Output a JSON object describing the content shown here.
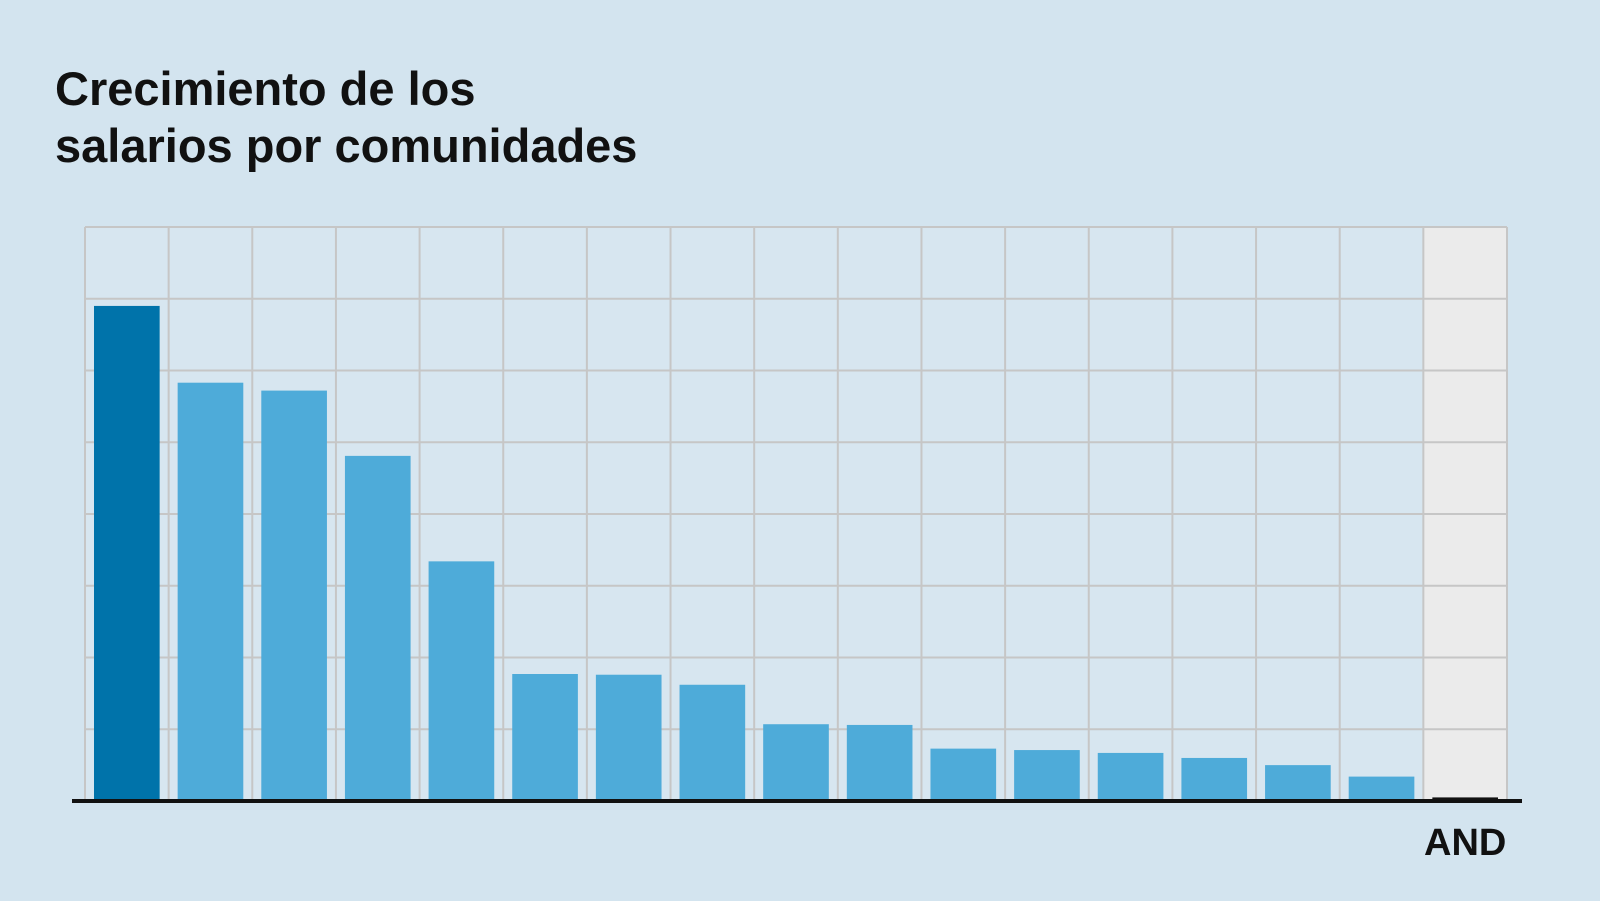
{
  "title": {
    "line1": "Crecimiento de los",
    "line2": "salarios por comunidades"
  },
  "colors": {
    "background": "#d3e4ef",
    "plot_area": "#d7e6f0",
    "highlight_column": "#ebebeb",
    "grid": "#c6c6c6",
    "bar": "#4eabd9",
    "bar_top": "#0073aa",
    "axis": "#111111"
  },
  "chart_data": {
    "type": "bar",
    "title": "Crecimiento de los salarios por comunidades",
    "xlabel": "",
    "ylabel": "",
    "categories": [
      "",
      "",
      "",
      "",
      "",
      "",
      "",
      "",
      "",
      "",
      "",
      "",
      "",
      "",
      "",
      "",
      "AND"
    ],
    "values": [
      6.9,
      5.83,
      5.72,
      4.81,
      3.34,
      1.77,
      1.76,
      1.62,
      1.07,
      1.06,
      0.73,
      0.71,
      0.67,
      0.6,
      0.5,
      0.34,
      0.05
    ],
    "highlight_index": 0,
    "shaded_category_index": 16,
    "ylim": [
      0,
      8
    ],
    "grid": true,
    "legend": "none"
  }
}
